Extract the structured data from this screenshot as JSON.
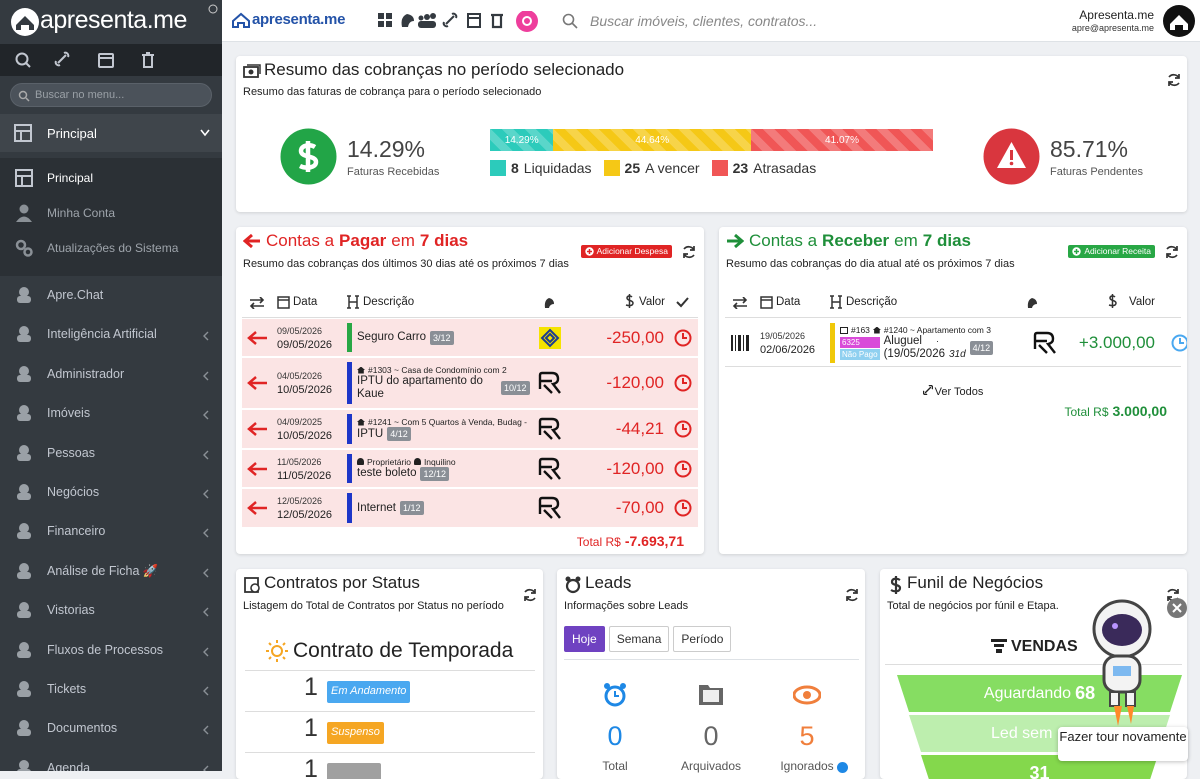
{
  "sidebar": {
    "brand": "apresenta.me",
    "search_placeholder": "Buscar no menu...",
    "open_menu": "Principal",
    "submenu": [
      "Principal",
      "Minha Conta",
      "Atualizações do Sistema"
    ],
    "menu": [
      "Apre.Chat",
      "Inteligência Artificial",
      "Administrador",
      "Imóveis",
      "Pessoas",
      "Negócios",
      "Financeiro",
      "Análise de Ficha 🚀",
      "Vistorias",
      "Fluxos de Processos",
      "Tickets",
      "Documentos",
      "Agenda"
    ]
  },
  "topbar": {
    "brand": "apresenta.me",
    "search_placeholder": "Buscar imóveis, clientes, contratos...",
    "user_name": "Apresenta.me",
    "user_email": "apre@apresenta.me"
  },
  "summary": {
    "title": "Resumo das cobranças no período selecionado",
    "subtitle": "Resumo das faturas de cobrança para o período selecionado",
    "received": {
      "value": "14.29%",
      "label": "Faturas Recebidas"
    },
    "pending": {
      "value": "85.71%",
      "label": "Faturas Pendentes"
    },
    "bar": [
      {
        "value": 14.29,
        "label": "14.29%",
        "color": "#2ccbbb"
      },
      {
        "value": 44.64,
        "label": "44.64%",
        "color": "#f5c816"
      },
      {
        "value": 41.07,
        "label": "41.07%",
        "color": "#f05656"
      }
    ],
    "legend": [
      {
        "count": 8,
        "label": "Liquidadas",
        "color": "#2ccbbb"
      },
      {
        "count": 25,
        "label": "A vencer",
        "color": "#f5c816"
      },
      {
        "count": 23,
        "label": "Atrasadas",
        "color": "#f05656"
      }
    ]
  },
  "payables": {
    "title": [
      "Contas a",
      "Pagar",
      "em",
      "7 dias"
    ],
    "subtitle": "Resumo das cobranças dos últimos 30 dias até os próximos 7 dias",
    "button": "Adicionar Despesa",
    "columns": [
      "Data",
      "Descrição",
      "Valor"
    ],
    "rows": [
      {
        "due": "09/05/2026",
        "date": "09/05/2026",
        "description": "Seguro Carro",
        "installment": "3/12",
        "value": "-250,00",
        "color": "#28a745"
      },
      {
        "due": "04/05/2026",
        "date": "10/05/2026",
        "ref": "#1303 ~ Casa de Condomínio com 2",
        "description": "IPTU do apartamento do Kaue",
        "installment": "10/12",
        "value": "-120,00",
        "color": "#1d36c8"
      },
      {
        "due": "04/09/2025",
        "date": "10/05/2026",
        "ref": "#1241 ~ Com 5 Quartos à Venda, Budag -",
        "description": "IPTU",
        "installment": "4/12",
        "value": "-44,21",
        "color": "#1d36c8"
      },
      {
        "due": "11/05/2026",
        "date": "11/05/2026",
        "people": [
          "Proprietário",
          "Inquilino"
        ],
        "description": "teste boleto",
        "installment": "12/12",
        "value": "-120,00",
        "color": "#1d36c8"
      },
      {
        "due": "12/05/2026",
        "date": "12/05/2026",
        "description": "Internet",
        "installment": "1/12",
        "value": "-70,00",
        "color": "#1d36c8"
      }
    ],
    "total_label": "Total R$",
    "total": "-7.693,71"
  },
  "receivables": {
    "title": [
      "Contas a",
      "Receber",
      "em",
      "7 dias"
    ],
    "subtitle": "Resumo das cobranças do dia atual até os próximos 7 dias",
    "button": "Adicionar Receita",
    "columns": [
      "Data",
      "Descrição",
      "Valor"
    ],
    "rows": [
      {
        "due": "19/05/2026",
        "date": "02/06/2026",
        "ref_id": "#163",
        "ref": "#1240 ~ Apartamento com 3",
        "badges": [
          {
            "text": "6325",
            "color": "#d94bd9"
          },
          {
            "text": "Não Pago",
            "color": "#8fd0f0"
          }
        ],
        "description": "Aluguel",
        "separator": "·",
        "date_note": "(19/05/2026",
        "days": "31d",
        "installment": "4/12",
        "value": "+3.000,00",
        "color": "#f0c808"
      }
    ],
    "link": "Ver Todos",
    "total_label": "Total R$",
    "total": "3.000,00"
  },
  "contracts": {
    "title": "Contratos por Status",
    "subtitle": "Listagem do Total de Contratos por Status no período",
    "group": "Contrato de Temporada",
    "rows": [
      {
        "count": 1,
        "status": "Em Andamento",
        "color": "#4aa8f0"
      },
      {
        "count": 1,
        "status": "Suspenso",
        "color": "#f5a623"
      },
      {
        "count": 1,
        "color": "#a0a0a0"
      }
    ]
  },
  "leads": {
    "title": "Leads",
    "subtitle": "Informações sobre Leads",
    "tabs": [
      "Hoje",
      "Semana",
      "Período"
    ],
    "stats": [
      {
        "count": 0,
        "label": "Total",
        "color": "#1e88e5"
      },
      {
        "count": 0,
        "label": "Arquivados",
        "color": "#666666"
      },
      {
        "count": 5,
        "label": "Ignorados",
        "color": "#f07f3c"
      }
    ]
  },
  "funnel": {
    "title": "Funil de Negócios",
    "subtitle": "Total de negócios por fúnil e Etapa.",
    "pipeline": "VENDAS",
    "stages": [
      {
        "name": "Aguardando",
        "count": 68,
        "color": "#86dd62"
      },
      {
        "name": "Led sem resp",
        "color": "#bdeeae"
      },
      {
        "count": 31,
        "color": "#84d84c"
      }
    ]
  },
  "tour": "Fazer tour novamente"
}
